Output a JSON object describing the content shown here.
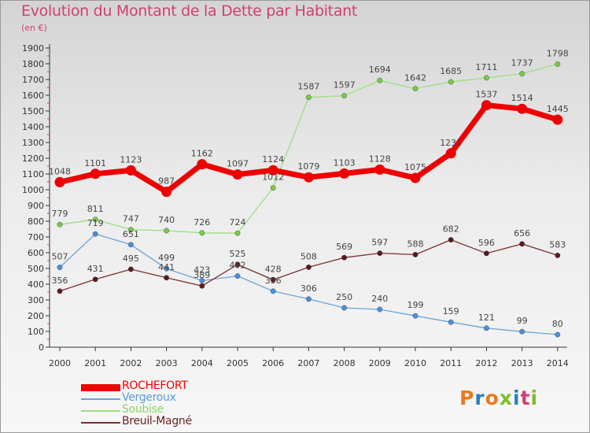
{
  "title": "Evolution du Montant de la Dette par Habitant",
  "subtitle": "(en €)",
  "logo": {
    "text": "Proxiti",
    "colors": [
      "#e87a1d",
      "#2a7fc1",
      "#e87a1d",
      "#7bbf2a",
      "#2a7fc1",
      "#d23f6e",
      "#7bbf2a"
    ]
  },
  "chart_data": {
    "type": "line",
    "categories": [
      "2000",
      "2001",
      "2002",
      "2003",
      "2004",
      "2005",
      "2006",
      "2007",
      "2008",
      "2009",
      "2010",
      "2011",
      "2012",
      "2013",
      "2014"
    ],
    "ylim": [
      0,
      1900
    ],
    "yticks": [
      0,
      100,
      200,
      300,
      400,
      500,
      600,
      700,
      800,
      900,
      1000,
      1100,
      1200,
      1300,
      1400,
      1500,
      1600,
      1700,
      1800,
      1900
    ],
    "grid": false,
    "legend_position": "bottom-left",
    "series": [
      {
        "name": "ROCHEFORT",
        "color": "#ee0000",
        "values": [
          1048,
          1101,
          1123,
          987,
          1162,
          1097,
          1124,
          1079,
          1103,
          1128,
          1075,
          1231,
          1537,
          1514,
          1445
        ]
      },
      {
        "name": "Vergeroux",
        "color": "#5b9bd5",
        "values": [
          507,
          719,
          651,
          499,
          423,
          452,
          356,
          306,
          250,
          240,
          199,
          159,
          121,
          99,
          80
        ]
      },
      {
        "name": "Soubise",
        "color": "#8bd66a",
        "values": [
          779,
          811,
          747,
          740,
          726,
          724,
          1012,
          1587,
          1597,
          1694,
          1642,
          1685,
          1711,
          1737,
          1798
        ]
      },
      {
        "name": "Breuil-Magné",
        "color": "#6b2323",
        "values": [
          356,
          431,
          495,
          441,
          389,
          525,
          428,
          508,
          569,
          597,
          588,
          682,
          596,
          656,
          583
        ]
      }
    ]
  }
}
